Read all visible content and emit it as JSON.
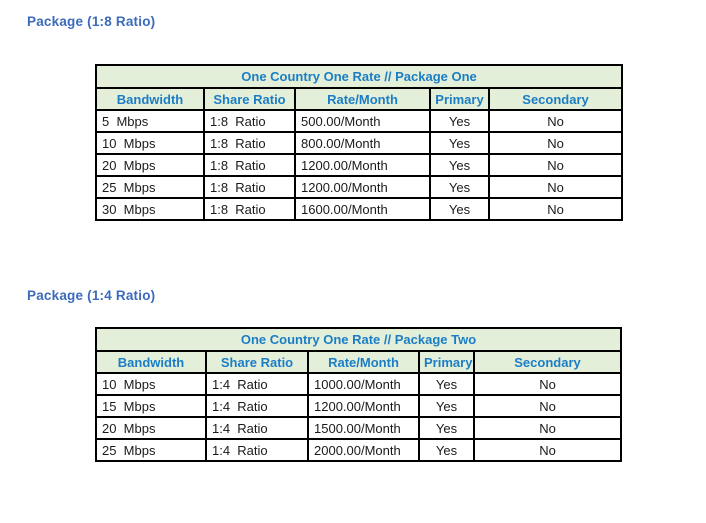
{
  "colors": {
    "page_bg": "#ffffff",
    "heading_text": "#3c6bbb",
    "table_title_text": "#1b7ec5",
    "table_header_text": "#1b7ec5",
    "table_header_bg": "#e4efda",
    "table_border": "#000000",
    "cell_text": "#1a1a1a"
  },
  "sections": [
    {
      "heading": "Package (1:8 Ratio)",
      "table": {
        "title": "One Country One Rate // Package One",
        "columns": [
          "Bandwidth",
          "Share Ratio",
          "Rate/Month",
          "Primary",
          "Secondary"
        ],
        "column_keys": [
          "bandwidth",
          "share-ratio",
          "rate-month",
          "primary",
          "secondary"
        ],
        "rows": [
          [
            "5  Mbps",
            "1:8  Ratio",
            "500.00/Month",
            "Yes",
            "No"
          ],
          [
            "10  Mbps",
            "1:8  Ratio",
            "800.00/Month",
            "Yes",
            "No"
          ],
          [
            "20  Mbps",
            "1:8  Ratio",
            "1200.00/Month",
            "Yes",
            "No"
          ],
          [
            "25  Mbps",
            "1:8  Ratio",
            "1200.00/Month",
            "Yes",
            "No"
          ],
          [
            "30  Mbps",
            "1:8  Ratio",
            "1600.00/Month",
            "Yes",
            "No"
          ]
        ]
      }
    },
    {
      "heading": "Package (1:4 Ratio)",
      "table": {
        "title": "One Country One Rate // Package Two",
        "columns": [
          "Bandwidth",
          "Share Ratio",
          "Rate/Month",
          "Primary",
          "Secondary"
        ],
        "column_keys": [
          "bandwidth",
          "share-ratio",
          "rate-month",
          "primary",
          "secondary"
        ],
        "rows": [
          [
            "10  Mbps",
            "1:4  Ratio",
            "1000.00/Month",
            "Yes",
            "No"
          ],
          [
            "15  Mbps",
            "1:4  Ratio",
            "1200.00/Month",
            "Yes",
            "No"
          ],
          [
            "20  Mbps",
            "1:4  Ratio",
            "1500.00/Month",
            "Yes",
            "No"
          ],
          [
            "25  Mbps",
            "1:4  Ratio",
            "2000.00/Month",
            "Yes",
            "No"
          ]
        ]
      }
    }
  ]
}
